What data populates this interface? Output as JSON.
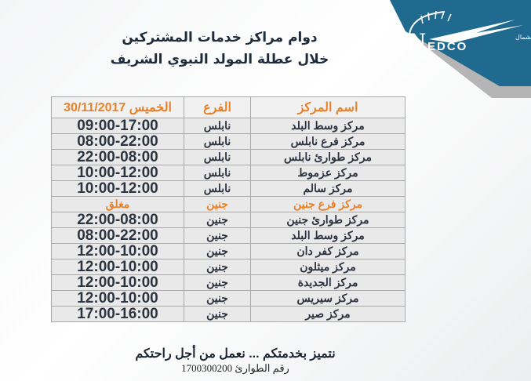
{
  "logo": {
    "brand": "NEDCO",
    "company_name": "شركة توزيع كهرباء الشمال",
    "colors": {
      "banner": "#1f6a8e",
      "stripe": "#b9b9b9"
    }
  },
  "title": {
    "line1": "دوام مراكز خدمات المشتركين",
    "line2": "خلال عطلة المولد النبوي الشريف"
  },
  "table": {
    "headers": {
      "center": "اسم المركز",
      "branch": "الفرع",
      "date": "الخميس 30/11/2017"
    },
    "rows": [
      {
        "center": "مركز وسط البلد",
        "branch": "نابلس",
        "hours": "09:00-17:00"
      },
      {
        "center": "مركز فرع نابلس",
        "branch": "نابلس",
        "hours": "08:00-22:00"
      },
      {
        "center": "مركز طوارئ نابلس",
        "branch": "نابلس",
        "hours": "22:00-08:00"
      },
      {
        "center": "مركز عزموط",
        "branch": "نابلس",
        "hours": "10:00-12:00"
      },
      {
        "center": "مركز سالم",
        "branch": "نابلس",
        "hours": "10:00-12:00"
      },
      {
        "center": "مركز فرع جنين",
        "branch": "جنين",
        "hours": "مغلق",
        "closed": true
      },
      {
        "center": "مركز طوارئ جنين",
        "branch": "جنين",
        "hours": "22:00-08:00"
      },
      {
        "center": "مركز وسط البلد",
        "branch": "جنين",
        "hours": "08:00-22:00"
      },
      {
        "center": "مركز كفر دان",
        "branch": "جنين",
        "hours": "12:00-10:00"
      },
      {
        "center": "مركز ميثلون",
        "branch": "جنين",
        "hours": "12:00-10:00"
      },
      {
        "center": "مركز الجديدة",
        "branch": "جنين",
        "hours": "12:00-10:00"
      },
      {
        "center": "مركز سيريس",
        "branch": "جنين",
        "hours": "12:00-10:00"
      },
      {
        "center": "مركز صير",
        "branch": "جنين",
        "hours": "17:00-16:00"
      }
    ]
  },
  "footer": {
    "slogan": "نتميز بخدمتكم ... نعمل من أجل راحتكم",
    "emergency": "رقم الطوارئ 1700300200"
  }
}
